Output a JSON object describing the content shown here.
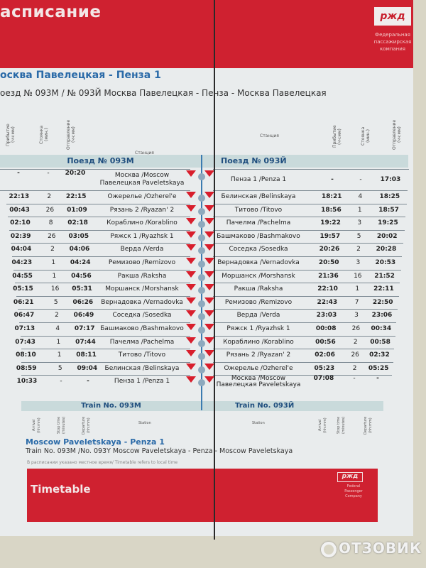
{
  "header": {
    "ru_title": "асписание",
    "logo": "ржд",
    "company_ru": "Федеральная пассажирская компания"
  },
  "title_ru": "осква  Павелецкая - Пенза 1",
  "subtitle_ru": "оезд № 093М / № 093Й  Москва Павелецкая - Пенза - Москва Павелецкая",
  "columns_ru": {
    "arrival": "Прибытие (чч:мм)",
    "stop": "Стоянка (мин.)",
    "departure": "Отправление (чч:мм)",
    "station": "Станция"
  },
  "columns_en": {
    "arrival": "Arrival (hh:mm)",
    "stop": "Stop time (minutes)",
    "departure": "Departure (hh:mm)",
    "station": "Station"
  },
  "train_left_ru": "Поезд № 093М",
  "train_right_ru": "Поезд № 093Й",
  "train_left_en": "Train No. 093М",
  "train_right_en": "Train No. 093Й",
  "left_rows": [
    {
      "arr": "-",
      "stop": "-",
      "dep": "20:20",
      "station": "Москва /Moscow Павелецкая Paveletskaya"
    },
    {
      "arr": "22:13",
      "stop": "2",
      "dep": "22:15",
      "station": "Ожерелье /Ozherel'e"
    },
    {
      "arr": "00:43",
      "stop": "26",
      "dep": "01:09",
      "station": "Рязань 2 /Ryazan' 2"
    },
    {
      "arr": "02:10",
      "stop": "8",
      "dep": "02:18",
      "station": "Кораблино /Korablino"
    },
    {
      "arr": "02:39",
      "stop": "26",
      "dep": "03:05",
      "station": "Ряжск 1 /Ryazhsk 1"
    },
    {
      "arr": "04:04",
      "stop": "2",
      "dep": "04:06",
      "station": "Верда /Verda"
    },
    {
      "arr": "04:23",
      "stop": "1",
      "dep": "04:24",
      "station": "Ремизово /Remizovo"
    },
    {
      "arr": "04:55",
      "stop": "1",
      "dep": "04:56",
      "station": "Ракша /Raksha"
    },
    {
      "arr": "05:15",
      "stop": "16",
      "dep": "05:31",
      "station": "Моршанск /Morshansk"
    },
    {
      "arr": "06:21",
      "stop": "5",
      "dep": "06:26",
      "station": "Вернадовка /Vernadovka"
    },
    {
      "arr": "06:47",
      "stop": "2",
      "dep": "06:49",
      "station": "Соседка /Sosedka"
    },
    {
      "arr": "07:13",
      "stop": "4",
      "dep": "07:17",
      "station": "Башмаково /Bashmakovo"
    },
    {
      "arr": "07:43",
      "stop": "1",
      "dep": "07:44",
      "station": "Пачелма /Pachelma"
    },
    {
      "arr": "08:10",
      "stop": "1",
      "dep": "08:11",
      "station": "Титово /Titovo"
    },
    {
      "arr": "08:59",
      "stop": "5",
      "dep": "09:04",
      "station": "Белинская /Belinskaya"
    },
    {
      "arr": "10:33",
      "stop": "-",
      "dep": "-",
      "station": "Пенза 1 /Penza 1"
    }
  ],
  "right_rows": [
    {
      "station": "Пенза 1 /Penza 1",
      "arr": "-",
      "stop": "-",
      "dep": "17:03"
    },
    {
      "station": "Белинская /Belinskaya",
      "arr": "18:21",
      "stop": "4",
      "dep": "18:25"
    },
    {
      "station": "Титово /Titovo",
      "arr": "18:56",
      "stop": "1",
      "dep": "18:57"
    },
    {
      "station": "Пачелма /Pachelma",
      "arr": "19:22",
      "stop": "3",
      "dep": "19:25"
    },
    {
      "station": "Башмаково /Bashmakovo",
      "arr": "19:57",
      "stop": "5",
      "dep": "20:02"
    },
    {
      "station": "Соседка /Sosedka",
      "arr": "20:26",
      "stop": "2",
      "dep": "20:28"
    },
    {
      "station": "Вернадовка /Vernadovka",
      "arr": "20:50",
      "stop": "3",
      "dep": "20:53"
    },
    {
      "station": "Моршанск /Morshansk",
      "arr": "21:36",
      "stop": "16",
      "dep": "21:52"
    },
    {
      "station": "Ракша /Raksha",
      "arr": "22:10",
      "stop": "1",
      "dep": "22:11"
    },
    {
      "station": "Ремизово /Remizovo",
      "arr": "22:43",
      "stop": "7",
      "dep": "22:50"
    },
    {
      "station": "Верда /Verda",
      "arr": "23:03",
      "stop": "3",
      "dep": "23:06"
    },
    {
      "station": "Ряжск 1 /Ryazhsk 1",
      "arr": "00:08",
      "stop": "26",
      "dep": "00:34"
    },
    {
      "station": "Кораблино /Korablino",
      "arr": "00:56",
      "stop": "2",
      "dep": "00:58"
    },
    {
      "station": "Рязань 2 /Ryazan' 2",
      "arr": "02:06",
      "stop": "26",
      "dep": "02:32"
    },
    {
      "station": "Ожерелье /Ozherel'e",
      "arr": "05:23",
      "stop": "2",
      "dep": "05:25"
    },
    {
      "station": "Москва /Moscow Павелецкая Paveletskaya",
      "arr": "07:08",
      "stop": "-",
      "dep": "-"
    }
  ],
  "title_en": "Moscow Paveletskaya - Penza 1",
  "subtitle_en": "Train No. 093M /No. 093Y Moscow Paveletskaya - Penza - Moscow Paveletskaya",
  "note": "В расписании указано местное время/ Timetable refers to local time",
  "footer": {
    "title": "Timetable",
    "logo": "ржд",
    "company_en": "Federal Passenger Company"
  },
  "watermark": "ОТЗОВИК",
  "colors": {
    "brand_red": "#cf2130",
    "title_blue": "#2a6aa8",
    "band": "#c9dadb"
  }
}
